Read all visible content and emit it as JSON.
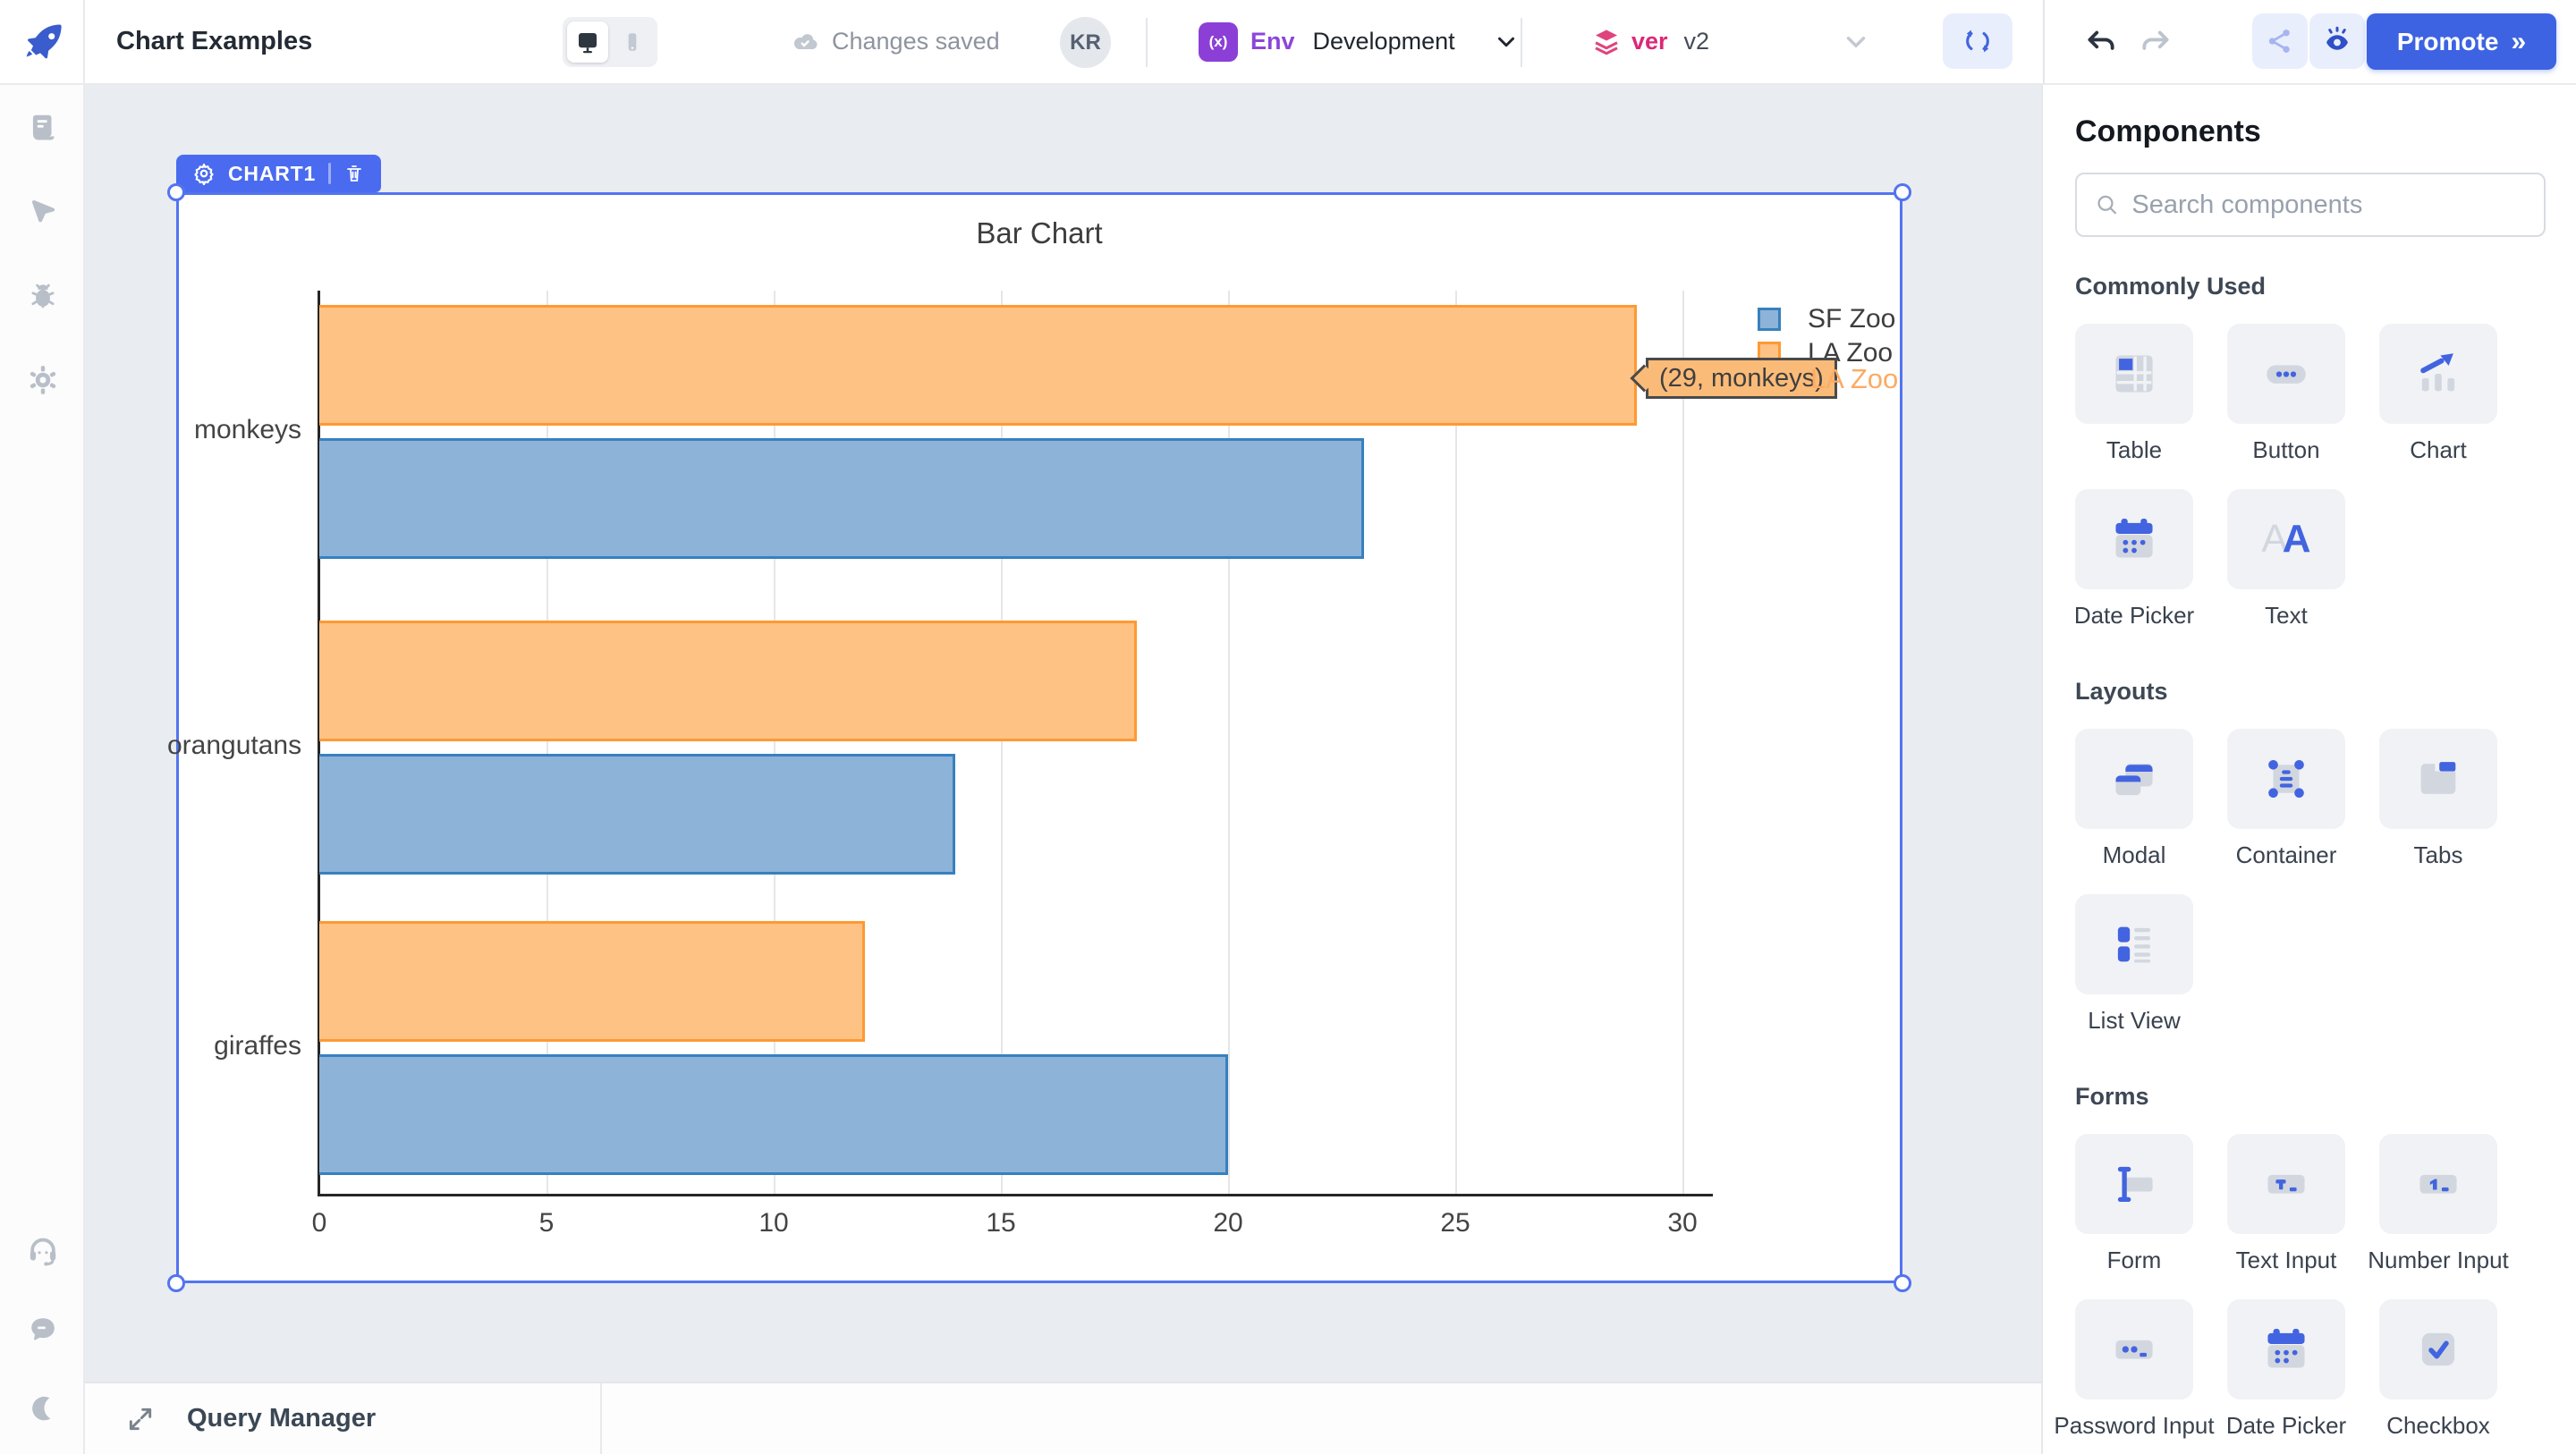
{
  "topbar": {
    "app_title": "Chart Examples",
    "status_text": "Changes saved",
    "avatar_initials": "KR",
    "env_badge": "(x)",
    "env_label": "Env",
    "env_value": "Development",
    "ver_label": "ver",
    "ver_value": "v2",
    "promote_label": "Promote",
    "promote_chevrons": "»"
  },
  "canvas": {
    "widget_tag": "CHART1",
    "query_manager_label": "Query Manager"
  },
  "chart_data": {
    "type": "bar",
    "orientation": "horizontal",
    "title": "Bar Chart",
    "categories": [
      "monkeys",
      "orangutans",
      "giraffes"
    ],
    "series": [
      {
        "name": "SF Zoo",
        "values": [
          23,
          14,
          20
        ],
        "fill": "#8db3d8",
        "border": "#3780bf"
      },
      {
        "name": "LA Zoo",
        "values": [
          29,
          18,
          12
        ],
        "fill": "#ffc285",
        "border": "#ff9933"
      }
    ],
    "x_ticks": [
      0,
      5,
      10,
      15,
      20,
      25,
      30
    ],
    "xlim": [
      0,
      30
    ],
    "grid": true,
    "legend_position": "top-right",
    "tooltip": {
      "text": "(29, monkeys)",
      "series": "LA Zoo"
    }
  },
  "components_panel": {
    "title": "Components",
    "search_placeholder": "Search components",
    "sections": [
      {
        "label": "Commonly Used",
        "items": [
          "Table",
          "Button",
          "Chart",
          "Date Picker",
          "Text"
        ]
      },
      {
        "label": "Layouts",
        "items": [
          "Modal",
          "Container",
          "Tabs",
          "List View"
        ]
      },
      {
        "label": "Forms",
        "items": [
          "Form",
          "Text Input",
          "Number Input",
          "Password Input",
          "Date Picker",
          "Checkbox"
        ]
      }
    ]
  },
  "colors": {
    "accent_blue": "#3d63e2",
    "selection_blue": "#5374f0",
    "env_purple": "#8b3fd6",
    "ver_pink": "#db2877",
    "canvas_bg": "#e9ecf1",
    "tooltip_bg": "#fbbb78"
  }
}
